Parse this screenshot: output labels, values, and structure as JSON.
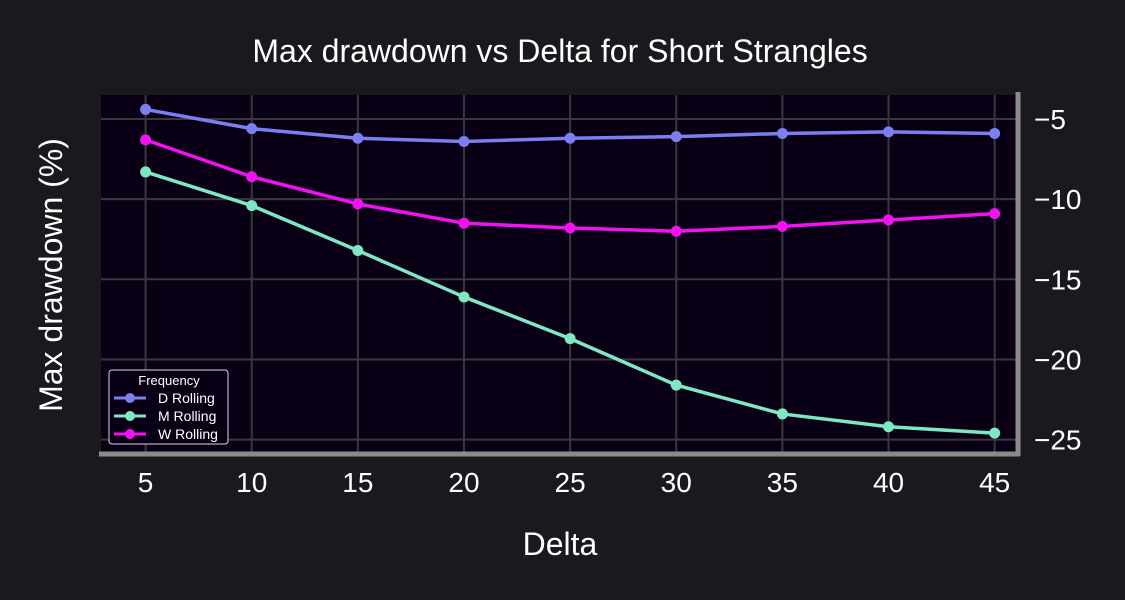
{
  "chart_data": {
    "type": "line",
    "title": "Max drawdown vs Delta for Short Strangles",
    "xlabel": "Delta",
    "ylabel": "Max drawdown (%)",
    "x": [
      5,
      10,
      15,
      20,
      25,
      30,
      35,
      40,
      45
    ],
    "xticks": [
      "5",
      "10",
      "15",
      "20",
      "25",
      "30",
      "35",
      "40",
      "45"
    ],
    "yticks": [
      -5,
      -10,
      -15,
      -20,
      -25
    ],
    "ytick_labels": [
      "−5",
      "−10",
      "−15",
      "−20",
      "−25"
    ],
    "xlim": [
      2.9,
      46.1
    ],
    "ylim": [
      -25.9,
      -3.5
    ],
    "y_axis_side": "right",
    "grid": true,
    "legend": {
      "title": "Frequency",
      "placement": "lower-left"
    },
    "series": [
      {
        "name": "D Rolling",
        "color": "#7b7ff0",
        "values": [
          -4.4,
          -5.6,
          -6.2,
          -6.4,
          -6.2,
          -6.1,
          -5.9,
          -5.8,
          -5.9
        ]
      },
      {
        "name": "M Rolling",
        "color": "#7ee8c4",
        "values": [
          -8.3,
          -10.4,
          -13.2,
          -16.1,
          -18.7,
          -21.6,
          -23.4,
          -24.2,
          -24.6
        ]
      },
      {
        "name": "W Rolling",
        "color": "#f012f0",
        "values": [
          -6.3,
          -8.6,
          -10.3,
          -11.5,
          -11.8,
          -12.0,
          -11.7,
          -11.3,
          -10.9
        ]
      }
    ],
    "colors": {
      "plot_background": "#0a0016",
      "page_background": "#1a191e",
      "grid": "#3a383e",
      "spine": "#8a8a8a"
    }
  }
}
